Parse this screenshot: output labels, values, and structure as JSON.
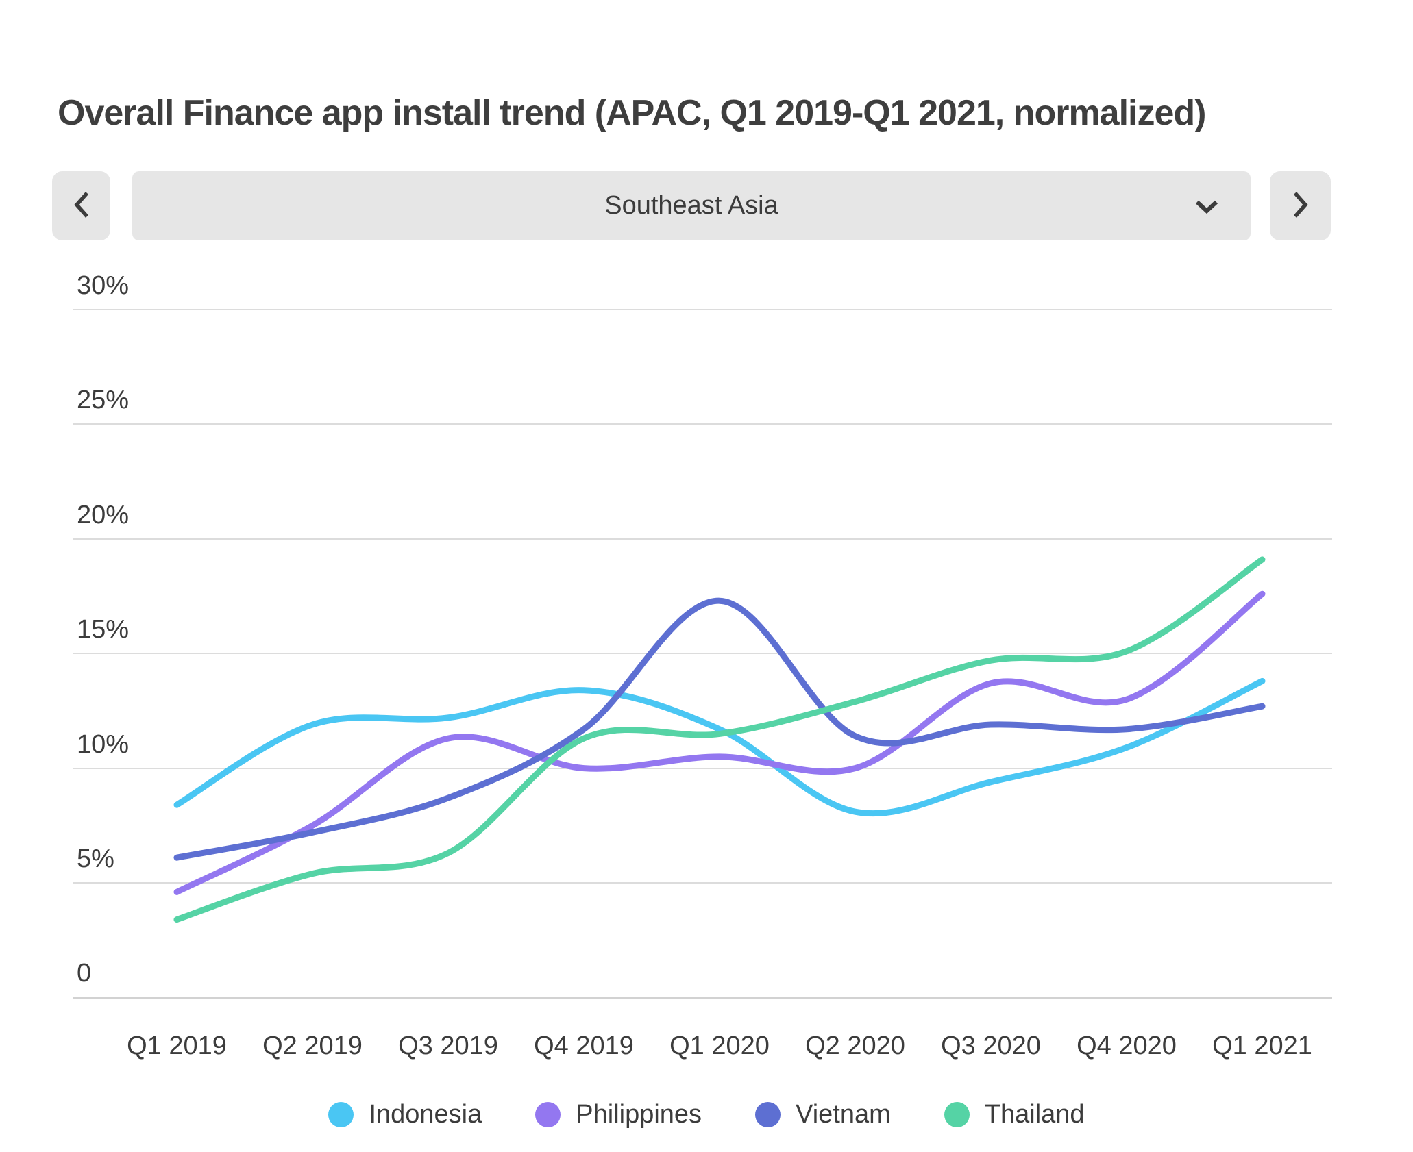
{
  "page": {
    "title": "Overall Finance app install trend (APAC, Q1 2019-Q1 2021, normalized)"
  },
  "region_selector": {
    "selected": "Southeast Asia",
    "prev_icon": "chevron-left-icon",
    "next_icon": "chevron-right-icon",
    "expand_icon": "chevron-down-icon"
  },
  "chart_data": {
    "type": "line",
    "title": "Overall Finance app install trend (APAC, Q1 2019-Q1 2021, normalized)",
    "categories": [
      "Q1 2019",
      "Q2 2019",
      "Q3 2019",
      "Q4 2019",
      "Q1 2020",
      "Q2 2020",
      "Q3 2020",
      "Q4 2020",
      "Q1 2021"
    ],
    "series": [
      {
        "name": "Indonesia",
        "color": "#4ac6f3",
        "values": [
          8.4,
          11.9,
          12.2,
          13.4,
          11.7,
          8.1,
          9.4,
          10.9,
          13.8
        ]
      },
      {
        "name": "Philippines",
        "color": "#9377f0",
        "values": [
          4.6,
          7.5,
          11.3,
          10.0,
          10.5,
          10.0,
          13.7,
          13.0,
          17.6
        ]
      },
      {
        "name": "Vietnam",
        "color": "#5d6fd2",
        "values": [
          6.1,
          7.2,
          8.7,
          11.7,
          17.3,
          11.4,
          11.9,
          11.7,
          12.7
        ]
      },
      {
        "name": "Thailand",
        "color": "#55d3a5",
        "values": [
          3.4,
          5.4,
          6.3,
          11.3,
          11.5,
          12.9,
          14.7,
          15.1,
          19.1
        ]
      }
    ],
    "y_ticks": [
      {
        "label": "30%",
        "value": 30
      },
      {
        "label": "25%",
        "value": 25
      },
      {
        "label": "20%",
        "value": 20
      },
      {
        "label": "15%",
        "value": 15
      },
      {
        "label": "10%",
        "value": 10
      },
      {
        "label": "5%",
        "value": 5
      },
      {
        "label": "0",
        "value": 0
      }
    ],
    "xlabel": "",
    "ylabel": "",
    "unit": "%",
    "ylim": [
      0,
      32.5
    ],
    "grid": true,
    "legend_position": "bottom"
  },
  "colors": {
    "grid_line": "#dcdcdc",
    "axis_line": "#d2d2d2",
    "text": "#3c3c3c",
    "title_text": "#3e3e3e",
    "control_background": "#e6e6e6"
  }
}
